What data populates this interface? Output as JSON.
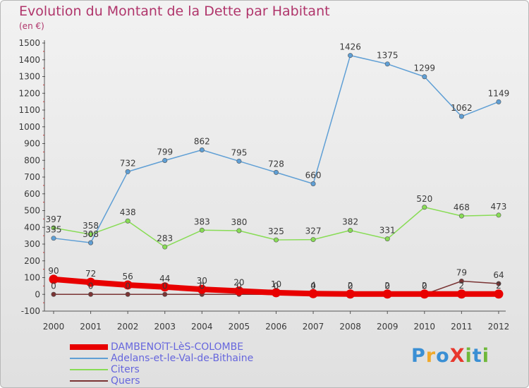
{
  "title": "Evolution du Montant de la Dette par Habitant",
  "subtitle": "(en €)",
  "logo": {
    "text": "ProXiti",
    "colors": [
      "#3a8fd4",
      "#f0a92c",
      "#3a8fd4",
      "#e8372c",
      "#6fb83a",
      "#3a8fd4",
      "#6fb83a"
    ]
  },
  "chart_data": {
    "type": "line",
    "categories": [
      "2000",
      "2001",
      "2002",
      "2003",
      "2004",
      "2005",
      "2006",
      "2007",
      "2008",
      "2009",
      "2010",
      "2011",
      "2012"
    ],
    "y_ticks": [
      "1500",
      "1400",
      "1300",
      "1200",
      "1100",
      "1000",
      "900",
      "800",
      "700",
      "600",
      "500",
      "400",
      "300",
      "200",
      "100",
      "0",
      "-100"
    ],
    "ylim": [
      -100,
      1500
    ],
    "grid": false,
    "legend_position": "bottom-left",
    "series": [
      {
        "name": "DAMBENOîT-LèS-COLOMBE",
        "color": "#e80000",
        "values": [
          90,
          72,
          56,
          44,
          30,
          20,
          10,
          4,
          2,
          2,
          2,
          2,
          2
        ],
        "labels": [
          "90",
          "72",
          "56",
          "44",
          "30",
          "20",
          "10",
          "4",
          "2",
          "2",
          "2",
          "2",
          "2"
        ]
      },
      {
        "name": "Adelans-et-le-Val-de-Bithaine",
        "color": "#5f9fd5",
        "values": [
          335,
          308,
          732,
          799,
          862,
          795,
          728,
          660,
          1426,
          1375,
          1299,
          1062,
          1149
        ],
        "labels": [
          "335",
          "308",
          "732",
          "799",
          "862",
          "795",
          "728",
          "660",
          "1426",
          "1375",
          "1299",
          "1062",
          "1149"
        ]
      },
      {
        "name": "Citers",
        "color": "#88dc55",
        "values": [
          397,
          358,
          438,
          283,
          383,
          380,
          325,
          327,
          382,
          331,
          520,
          468,
          473
        ],
        "labels": [
          "397",
          "358",
          "438",
          "283",
          "383",
          "380",
          "325",
          "327",
          "382",
          "331",
          "520",
          "468",
          "473"
        ]
      },
      {
        "name": "Quers",
        "color": "#7a3434",
        "values": [
          0,
          0,
          0,
          0,
          0,
          0,
          0,
          0,
          0,
          0,
          0,
          79,
          64
        ],
        "labels": [
          "0",
          "0",
          "0",
          "0",
          "0",
          "0",
          "0",
          "0",
          "0",
          "0",
          "0",
          "79",
          "64"
        ]
      }
    ]
  }
}
